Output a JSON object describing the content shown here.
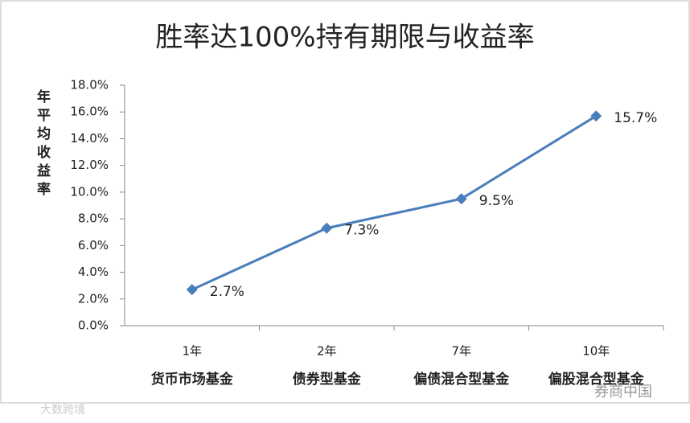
{
  "chart_data": {
    "type": "line",
    "title": "胜率达100%持有期限与收益率",
    "y_label": "年平均收益率",
    "categories": [
      "1年",
      "2年",
      "7年",
      "10年"
    ],
    "category_descriptions": [
      "货币市场基金",
      "债券型基金",
      "偏债混合型基金",
      "偏股混合型基金"
    ],
    "series": [
      {
        "color": "#4a7ebb",
        "values": [
          2.7,
          7.3,
          9.5,
          15.7
        ],
        "value_labels": [
          "2.7%",
          "7.3%",
          "9.5%",
          "15.7%"
        ]
      }
    ],
    "ylim": [
      0,
      18
    ],
    "yticks": [
      {
        "value": 0,
        "label": "0.0%"
      },
      {
        "value": 2,
        "label": "2.0%"
      },
      {
        "value": 4,
        "label": "4.0%"
      },
      {
        "value": 6,
        "label": "6.0%"
      },
      {
        "value": 8,
        "label": "8.0%"
      },
      {
        "value": 10,
        "label": "10.0%"
      },
      {
        "value": 12,
        "label": "12.0%"
      },
      {
        "value": 14,
        "label": "14.0%"
      },
      {
        "value": 16,
        "label": "16.0%"
      },
      {
        "value": 18,
        "label": "18.0%"
      }
    ],
    "grid": false,
    "watermarks": [
      "大数跨境",
      "券商中国"
    ]
  }
}
